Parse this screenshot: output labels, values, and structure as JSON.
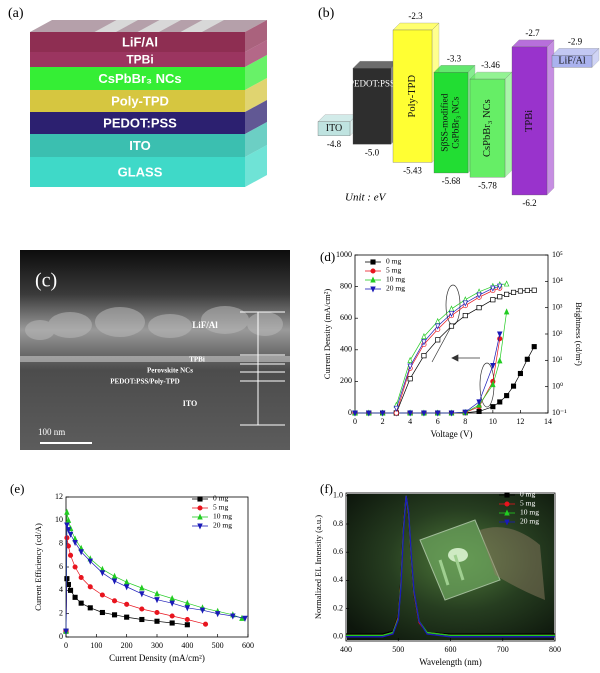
{
  "panel_a": {
    "label": "(a)",
    "layers": [
      {
        "name": "LiF/Al",
        "color": "#8e2e52"
      },
      {
        "name": "TPBi",
        "color": "#9b3560"
      },
      {
        "name": "CsPbBr₃ NCs",
        "color": "#35ee35"
      },
      {
        "name": "Poly-TPD",
        "color": "#d6c640"
      },
      {
        "name": "PEDOT:PSS",
        "color": "#2c2070"
      },
      {
        "name": "ITO",
        "color": "#3bbfb0"
      },
      {
        "name": "GLASS",
        "color": "#3fd9c8"
      }
    ]
  },
  "panel_b": {
    "label": "(b)",
    "unit": "Unit : eV",
    "levels": [
      {
        "name": "ITO",
        "homo": -4.8,
        "color": "#bfe3e0"
      },
      {
        "name": "PEDOT:PSS",
        "homo": -5,
        "homo_label": "-5.0",
        "color": "#2e2e2e"
      },
      {
        "name": "Poly-TPD",
        "lumo": -2.3,
        "homo": -5.43,
        "color": "#ffff33"
      },
      {
        "name": [
          "SβSS-modified",
          "CsPbBr₃ NCs"
        ],
        "lumo": -3.3,
        "homo": -5.68,
        "color": "#22dd33"
      },
      {
        "name": "CsPbBr₃ NCs",
        "lumo": -3.46,
        "homo": -5.78,
        "color": "#66ee66"
      },
      {
        "name": "TPBi",
        "lumo": -2.7,
        "homo": -6.2,
        "color": "#9933cc"
      },
      {
        "name": "LiF/Al",
        "lumo": -2.9,
        "color": "#aab2ee"
      }
    ]
  },
  "panel_c": {
    "label": "(c)",
    "layers": [
      "LiF/Al",
      "TPBi",
      "Perovskite NCs",
      "PEDOT:PSS/Poly-TPD",
      "ITO"
    ],
    "scale_bar": "100 nm"
  },
  "chart_data": [
    {
      "type": "line",
      "label": "(d)",
      "xlabel": "Voltage (V)",
      "ylabel": "Current Density (mA/cm²)",
      "y2label": "Brightness (cd/m²)",
      "x": [
        0,
        1,
        2,
        3,
        4,
        5,
        6,
        7,
        8,
        9,
        10,
        10.5,
        11,
        11.5,
        12,
        12.5,
        13
      ],
      "xlim": [
        0,
        14
      ],
      "xticks": [
        0,
        2,
        4,
        6,
        8,
        10,
        12,
        14
      ],
      "ylim": [
        0,
        1000
      ],
      "yticks": [
        0,
        200,
        400,
        600,
        800,
        1000
      ],
      "y2lim": [
        0.1,
        100000
      ],
      "y2_log": true,
      "y2ticks": [
        {
          "value": 0.1,
          "label": "10⁻¹"
        },
        {
          "value": 1,
          "label": "10⁰"
        },
        {
          "value": 10,
          "label": "10¹"
        },
        {
          "value": 100,
          "label": "10²"
        },
        {
          "value": 1000,
          "label": "10³"
        },
        {
          "value": 10000,
          "label": "10⁴"
        },
        {
          "value": 100000,
          "label": "10⁵"
        }
      ],
      "legend": "upper left",
      "series": [
        {
          "name": "0 mg",
          "color": "#000000",
          "marker": "square",
          "values": [
            0,
            0,
            0,
            0,
            0,
            0,
            0,
            0,
            2,
            10,
            40,
            70,
            110,
            170,
            250,
            340,
            420
          ]
        },
        {
          "name": "5 mg",
          "color": "#e8141e",
          "marker": "circle",
          "values": [
            0,
            0,
            0,
            0,
            0,
            0,
            0,
            0,
            3,
            40,
            200,
            470,
            null,
            null,
            null,
            null,
            null
          ]
        },
        {
          "name": "10 mg",
          "color": "#22cc22",
          "marker": "triangle",
          "values": [
            0,
            0,
            0,
            0,
            0,
            0,
            0,
            0,
            4,
            50,
            180,
            330,
            640,
            null,
            null,
            null,
            null
          ]
        },
        {
          "name": "20 mg",
          "color": "#1a1ab8",
          "marker": "down",
          "values": [
            0,
            0,
            0,
            0,
            0,
            0,
            0,
            0,
            5,
            70,
            300,
            500,
            null,
            null,
            null,
            null,
            null
          ]
        },
        {
          "name": "0 mg",
          "color": "#000000",
          "marker": "square",
          "axis": "y2",
          "open": true,
          "values": [
            null,
            null,
            null,
            0.1,
            2,
            15,
            60,
            200,
            500,
            1000,
            2000,
            2600,
            3200,
            3800,
            4300,
            4500,
            4600
          ]
        },
        {
          "name": "5 mg",
          "color": "#e8141e",
          "marker": "circle",
          "axis": "y2",
          "open": true,
          "values": [
            null,
            null,
            null,
            0.1,
            5,
            40,
            150,
            500,
            1200,
            2500,
            4500,
            5500,
            null,
            null,
            null,
            null,
            null
          ]
        },
        {
          "name": "10 mg",
          "color": "#22cc22",
          "marker": "triangle",
          "axis": "y2",
          "open": true,
          "values": [
            null,
            null,
            null,
            0.2,
            10,
            80,
            300,
            900,
            2000,
            4000,
            6500,
            7500,
            8000,
            null,
            null,
            null,
            null
          ]
        },
        {
          "name": "20 mg",
          "color": "#1a1ab8",
          "marker": "down",
          "axis": "y2",
          "open": true,
          "values": [
            null,
            null,
            null,
            0.15,
            6,
            50,
            200,
            600,
            1500,
            3000,
            5500,
            6500,
            null,
            null,
            null,
            null,
            null
          ]
        }
      ]
    },
    {
      "type": "line",
      "label": "(e)",
      "xlabel": "Current Density (mA/cm²)",
      "ylabel": "Current Efficiency (cd/A)",
      "xlim": [
        0,
        600
      ],
      "xticks": [
        0,
        100,
        200,
        300,
        400,
        500,
        600
      ],
      "ylim": [
        0,
        12
      ],
      "yticks": [
        0,
        2,
        4,
        6,
        8,
        10,
        12
      ],
      "legend": "upper right",
      "series": [
        {
          "name": "0 mg",
          "color": "#000000",
          "marker": "square",
          "x": [
            0,
            3,
            8,
            15,
            30,
            50,
            80,
            120,
            160,
            200,
            250,
            300,
            350,
            400
          ],
          "values": [
            0.5,
            5,
            4.5,
            4,
            3.4,
            2.9,
            2.5,
            2.1,
            1.9,
            1.7,
            1.5,
            1.35,
            1.2,
            1.05
          ]
        },
        {
          "name": "5 mg",
          "color": "#e8141e",
          "marker": "circle",
          "x": [
            0,
            3,
            8,
            15,
            30,
            50,
            80,
            120,
            160,
            200,
            250,
            300,
            350,
            400,
            460
          ],
          "values": [
            0.5,
            8.5,
            7.8,
            7,
            6,
            5.1,
            4.3,
            3.6,
            3.1,
            2.8,
            2.4,
            2.1,
            1.8,
            1.5,
            1.1
          ]
        },
        {
          "name": "10 mg",
          "color": "#22cc22",
          "marker": "triangle",
          "x": [
            0,
            3,
            8,
            15,
            30,
            50,
            80,
            120,
            160,
            200,
            250,
            300,
            350,
            400,
            450,
            500,
            550,
            580
          ],
          "values": [
            0.5,
            10.7,
            10,
            9.3,
            8.4,
            7.6,
            6.7,
            5.8,
            5.2,
            4.7,
            4.2,
            3.7,
            3.3,
            2.9,
            2.5,
            2.2,
            1.9,
            1.6
          ]
        },
        {
          "name": "20 mg",
          "color": "#1a1ab8",
          "marker": "down",
          "x": [
            0,
            3,
            8,
            15,
            30,
            50,
            80,
            120,
            160,
            200,
            250,
            300,
            350,
            400,
            450,
            500,
            550,
            590
          ],
          "values": [
            0.5,
            9.6,
            9.2,
            8.8,
            8.1,
            7.3,
            6.5,
            5.5,
            4.8,
            4.3,
            3.7,
            3.2,
            2.9,
            2.5,
            2.3,
            2,
            1.8,
            1.6
          ]
        }
      ]
    },
    {
      "type": "line",
      "label": "(f)",
      "xlabel": "Wavelength (nm)",
      "ylabel": "Normalized EL Intensity (a.u.)",
      "x": [
        400,
        470,
        490,
        500,
        505,
        510,
        515,
        520,
        525,
        530,
        540,
        555,
        600,
        700,
        800
      ],
      "xlim": [
        400,
        800
      ],
      "xticks": [
        400,
        500,
        600,
        700,
        800
      ],
      "ylim": [
        -0.03,
        1.02
      ],
      "yticks": [
        {
          "value": 0,
          "label": "0.0"
        },
        {
          "value": 0.2,
          "label": "0.2"
        },
        {
          "value": 0.4,
          "label": "0.4"
        },
        {
          "value": 0.6,
          "label": "0.6"
        },
        {
          "value": 0.8,
          "label": "0.8"
        },
        {
          "value": 1,
          "label": "1.0"
        }
      ],
      "legend": "upper right",
      "markers_on_lines": false,
      "series": [
        {
          "name": "0 mg",
          "color": "#000000",
          "marker": "square",
          "values": [
            0.02,
            0.02,
            0.04,
            0.15,
            0.4,
            0.8,
            1,
            0.85,
            0.55,
            0.3,
            0.1,
            0.03,
            0.02,
            0.02,
            0.02
          ]
        },
        {
          "name": "5 mg",
          "color": "#e8141e",
          "marker": "circle",
          "values": [
            0.01,
            0.01,
            0.03,
            0.14,
            0.38,
            0.78,
            1,
            0.86,
            0.56,
            0.31,
            0.1,
            0.03,
            0.01,
            0.01,
            0.01
          ]
        },
        {
          "name": "10 mg",
          "color": "#22cc22",
          "marker": "triangle",
          "values": [
            0.01,
            0.01,
            0.03,
            0.13,
            0.37,
            0.77,
            1,
            0.87,
            0.57,
            0.32,
            0.11,
            0.03,
            0.01,
            0.01,
            0.01
          ]
        },
        {
          "name": "20 mg",
          "color": "#1a1ab8",
          "marker": "down",
          "values": [
            0,
            0,
            0.02,
            0.12,
            0.35,
            0.75,
            1,
            0.88,
            0.58,
            0.33,
            0.11,
            0.02,
            0,
            0,
            0
          ]
        }
      ]
    }
  ]
}
